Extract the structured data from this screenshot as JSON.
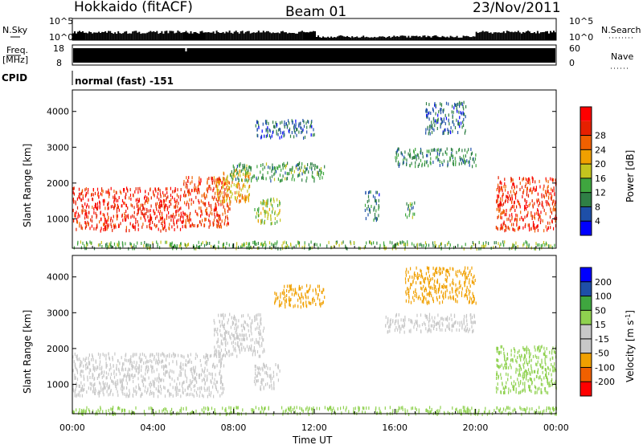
{
  "header": {
    "site": "Hokkaido (fitACF)",
    "beam": "Beam 01",
    "date": "23/Nov/2011"
  },
  "labels": {
    "nsky": "N.Sky",
    "nsearch": "N.Search",
    "freq": "Freq.",
    "mhz": "[MHz]",
    "nave": "Nave",
    "cpid": "CPID",
    "cpid_value": "normal (fast) -151",
    "slant_range": "Slant Range [km]",
    "time_ut": "Time UT",
    "power_label": "Power [dB]",
    "velocity_label": "Velocity [m s",
    "velocity_sup": "-1",
    "velocity_close": "]",
    "noise_hi": "10^5",
    "noise_lo": "10^0",
    "freq_hi": "18",
    "freq_lo": "8",
    "nave_hi": "60",
    "nave_lo": "0"
  },
  "colors": {
    "power_scale": [
      "#0000ff",
      "#1e4fa8",
      "#2f7f45",
      "#3fa63f",
      "#c4c41e",
      "#f0a000",
      "#f06000",
      "#e62000",
      "#ff0000"
    ],
    "velocity_scale": [
      "#ff0000",
      "#f06000",
      "#f0a000",
      "#c8c8c8",
      "#c8c8c8",
      "#8fd14f",
      "#3fa63f",
      "#1e4fa8",
      "#0000ff"
    ]
  },
  "chart_data": [
    {
      "type": "heatmap",
      "name": "power",
      "title": "Power [dB]",
      "xlabel": "Time UT",
      "ylabel": "Slant Range [km]",
      "x_ticks": [
        "00:00",
        "04:00",
        "08:00",
        "12:00",
        "16:00",
        "20:00",
        "00:00"
      ],
      "y_ticks": [
        1000,
        2000,
        3000,
        4000
      ],
      "ylim": [
        180,
        4600
      ],
      "xlim_hours": [
        0,
        24
      ],
      "colorbar_ticks": [
        4,
        8,
        12,
        16,
        20,
        24,
        28
      ],
      "colorbar_range": [
        0,
        30
      ],
      "regions": [
        {
          "t": [
            0,
            5.5
          ],
          "r": [
            700,
            1900
          ],
          "v": 26
        },
        {
          "t": [
            5.5,
            7.8
          ],
          "r": [
            800,
            2200
          ],
          "v": 24
        },
        {
          "t": [
            7.0,
            8.8
          ],
          "r": [
            1500,
            2400
          ],
          "v": 18
        },
        {
          "t": [
            9.0,
            10.3
          ],
          "r": [
            900,
            1600
          ],
          "v": 14
        },
        {
          "t": [
            7.8,
            12.5
          ],
          "r": [
            2100,
            2600
          ],
          "v": 10
        },
        {
          "t": [
            9.0,
            12.0
          ],
          "r": [
            3300,
            3800
          ],
          "v": 6
        },
        {
          "t": [
            14.5,
            15.2
          ],
          "r": [
            1000,
            1800
          ],
          "v": 7
        },
        {
          "t": [
            16.5,
            17.0
          ],
          "r": [
            1000,
            1500
          ],
          "v": 10
        },
        {
          "t": [
            16.0,
            20.0
          ],
          "r": [
            2500,
            3000
          ],
          "v": 9
        },
        {
          "t": [
            17.5,
            19.5
          ],
          "r": [
            3400,
            4300
          ],
          "v": 6
        },
        {
          "t": [
            21.0,
            24.0
          ],
          "r": [
            700,
            2200
          ],
          "v": 25
        },
        {
          "t": [
            0,
            24
          ],
          "r": [
            200,
            400
          ],
          "v": 12
        }
      ]
    },
    {
      "type": "heatmap",
      "name": "velocity",
      "title": "Velocity [m s-1]",
      "xlabel": "Time UT",
      "ylabel": "Slant Range [km]",
      "x_ticks": [
        "00:00",
        "04:00",
        "08:00",
        "12:00",
        "16:00",
        "20:00",
        "00:00"
      ],
      "y_ticks": [
        1000,
        2000,
        3000,
        4000
      ],
      "ylim": [
        180,
        4600
      ],
      "xlim_hours": [
        0,
        24
      ],
      "colorbar_ticks": [
        -200,
        -100,
        -50,
        -15,
        15,
        50,
        100,
        200
      ],
      "regions": [
        {
          "t": [
            0,
            7.5
          ],
          "r": [
            700,
            1900
          ],
          "v": 0
        },
        {
          "t": [
            7.0,
            9.5
          ],
          "r": [
            1800,
            3000
          ],
          "v": 5
        },
        {
          "t": [
            9.0,
            10.3
          ],
          "r": [
            900,
            1600
          ],
          "v": -20
        },
        {
          "t": [
            10.0,
            12.5
          ],
          "r": [
            3200,
            3800
          ],
          "v": -60
        },
        {
          "t": [
            16.5,
            20.0
          ],
          "r": [
            3300,
            4300
          ],
          "v": -70
        },
        {
          "t": [
            15.5,
            20.0
          ],
          "r": [
            2500,
            3000
          ],
          "v": -30
        },
        {
          "t": [
            21.0,
            24.0
          ],
          "r": [
            800,
            2100
          ],
          "v": 40
        },
        {
          "t": [
            0,
            24
          ],
          "r": [
            200,
            400
          ],
          "v": 30
        }
      ]
    },
    {
      "type": "line",
      "name": "noise",
      "labels": [
        "N.Sky",
        "N.Search"
      ],
      "ylim": [
        "10^0",
        "10^5"
      ]
    },
    {
      "type": "bar",
      "name": "frequency_nave",
      "labels": [
        "Freq. [MHz]",
        "Nave"
      ],
      "freq_range": [
        8,
        18
      ],
      "nave_range": [
        0,
        60
      ]
    }
  ]
}
